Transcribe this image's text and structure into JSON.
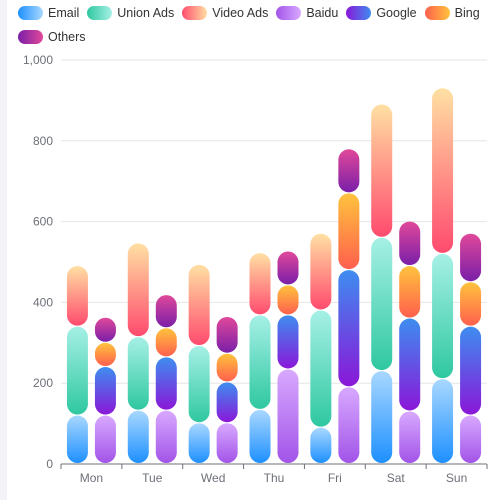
{
  "chart_data": {
    "type": "bar",
    "categories": [
      "Mon",
      "Tue",
      "Wed",
      "Thu",
      "Fri",
      "Sat",
      "Sun"
    ],
    "ylim": [
      0,
      1000
    ],
    "yticks": [
      "0",
      "200",
      "400",
      "600",
      "800",
      "1,000"
    ],
    "grid": true,
    "legend_position": "top-left",
    "series": [
      {
        "name": "Email",
        "stack": "A",
        "values": [
          120,
          132,
          101,
          134,
          90,
          230,
          210
        ],
        "colors": [
          "#1e90ff",
          "#a9d8ff"
        ]
      },
      {
        "name": "Union Ads",
        "stack": "A",
        "values": [
          220,
          182,
          191,
          234,
          290,
          330,
          310
        ],
        "colors": [
          "#2fc8a0",
          "#a6f0e6"
        ]
      },
      {
        "name": "Video Ads",
        "stack": "A",
        "values": [
          150,
          232,
          201,
          154,
          190,
          330,
          410
        ],
        "colors": [
          "#ff4b6e",
          "#ffe0a3"
        ]
      },
      {
        "name": "Baidu",
        "stack": "B",
        "values": [
          120,
          132,
          101,
          234,
          190,
          130,
          120
        ],
        "colors": [
          "#a254e8",
          "#d8a9ff"
        ]
      },
      {
        "name": "Google",
        "stack": "B",
        "values": [
          120,
          132,
          101,
          134,
          290,
          230,
          220
        ],
        "colors": [
          "#8a17d8",
          "#3e8df0"
        ]
      },
      {
        "name": "Bing",
        "stack": "B",
        "values": [
          60,
          72,
          71,
          74,
          190,
          130,
          110
        ],
        "colors": [
          "#ff5f4d",
          "#ffc33d"
        ]
      },
      {
        "name": "Others",
        "stack": "B",
        "values": [
          62,
          82,
          91,
          84,
          109,
          110,
          120
        ],
        "colors": [
          "#7a1fa8",
          "#e0489a"
        ]
      }
    ]
  }
}
